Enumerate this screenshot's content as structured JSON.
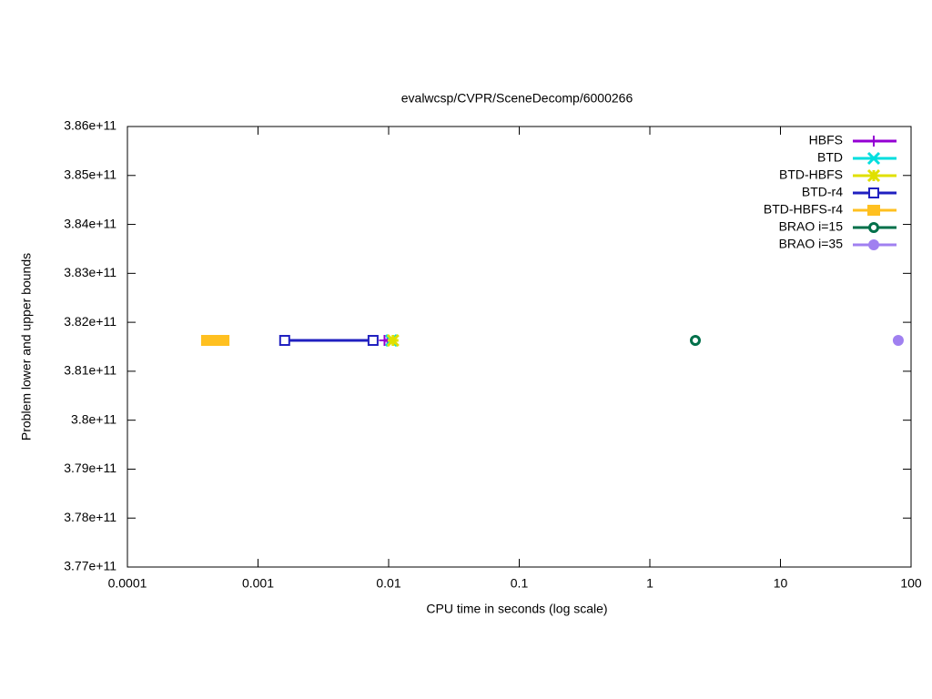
{
  "chart_data": {
    "type": "line",
    "title": "evalwcsp/CVPR/SceneDecomp/6000266",
    "x_label": "CPU time in seconds (log scale)",
    "y_label": "Problem lower and upper bounds",
    "log_x": true,
    "grid": false,
    "legend": "top right",
    "xlim": [
      0.0001,
      100
    ],
    "xticks": [
      0.0001,
      0.001,
      0.01,
      0.1,
      1,
      10,
      100
    ],
    "ylim": [
      377000000000,
      386000000000
    ],
    "yticks": [
      {
        "value": 377000000000,
        "label": "3.77e+11"
      },
      {
        "value": 378000000000,
        "label": "3.78e+11"
      },
      {
        "value": 379000000000,
        "label": "3.79e+11"
      },
      {
        "value": 380000000000,
        "label": "3.8e+11"
      },
      {
        "value": 381000000000,
        "label": "3.81e+11"
      },
      {
        "value": 382000000000,
        "label": "3.82e+11"
      },
      {
        "value": 383000000000,
        "label": "3.83e+11"
      },
      {
        "value": 384000000000,
        "label": "3.84e+11"
      },
      {
        "value": 385000000000,
        "label": "3.85e+11"
      },
      {
        "value": 386000000000,
        "label": "3.86e+11"
      }
    ],
    "series": [
      {
        "name": "HBFS",
        "color": "#9400d3",
        "marker": "plus",
        "x": [
          0.0093,
          0.0098
        ],
        "values": [
          381630000000,
          381630000000
        ]
      },
      {
        "name": "BTD",
        "color": "#00dede",
        "marker": "cross",
        "x": [
          0.0105
        ],
        "values": [
          381630000000
        ]
      },
      {
        "name": "BTD-HBFS",
        "color": "#e0e000",
        "marker": "star",
        "x": [
          0.0108
        ],
        "values": [
          381630000000
        ]
      },
      {
        "name": "BTD-r4",
        "color": "#2020c0",
        "marker": "open-square",
        "x": [
          0.0016,
          0.0076
        ],
        "values": [
          381630000000,
          381630000000
        ]
      },
      {
        "name": "BTD-HBFS-r4",
        "color": "#ffc020",
        "marker": "filled-square",
        "x": [
          0.00041,
          0.00048,
          0.00054
        ],
        "values": [
          381630000000,
          381630000000,
          381630000000
        ]
      },
      {
        "name": "BRAO i=15",
        "color": "#00704a",
        "marker": "open-circle",
        "x": [
          2.23
        ],
        "values": [
          381630000000
        ]
      },
      {
        "name": "BRAO i=35",
        "color": "#a080f0",
        "marker": "filled-circle",
        "x": [
          79.8
        ],
        "values": [
          381630000000
        ]
      }
    ]
  }
}
